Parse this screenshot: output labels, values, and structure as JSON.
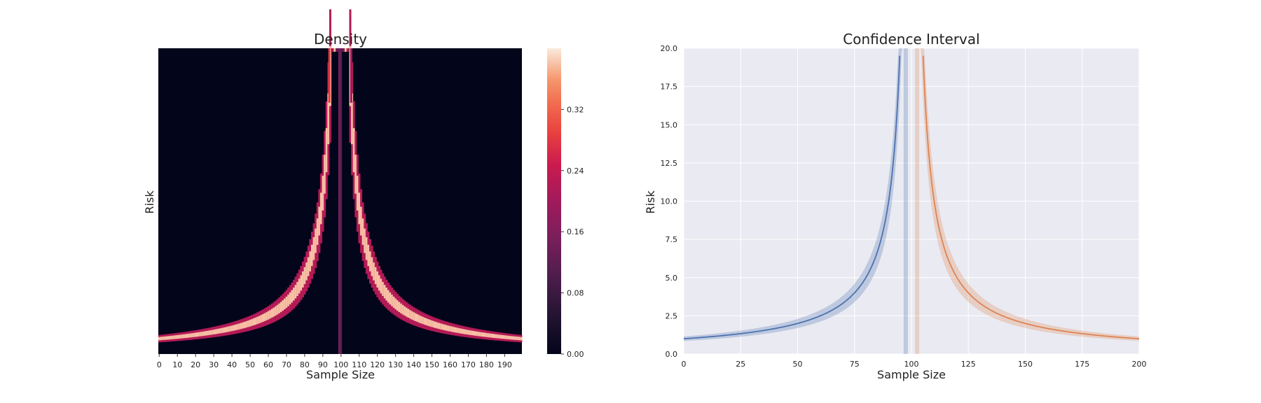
{
  "chart_data": [
    {
      "type": "heatmap",
      "title": "Density",
      "xlabel": "Sample Size",
      "ylabel": "Risk",
      "x_tick_labels": [
        "0",
        "10",
        "20",
        "30",
        "40",
        "50",
        "60",
        "70",
        "80",
        "90",
        "100",
        "110",
        "120",
        "130",
        "140",
        "150",
        "160",
        "170",
        "180",
        "190"
      ],
      "x_range": [
        0,
        200
      ],
      "y_range": [
        0,
        20
      ],
      "y_tick_labels": [],
      "colormap": "rocket",
      "colorbar": {
        "range": [
          0,
          0.4
        ],
        "tick_labels": [
          "0.00",
          "0.08",
          "0.16",
          "0.24",
          "0.32"
        ],
        "tick_values": [
          0,
          0.08,
          0.16,
          0.24,
          0.32
        ]
      },
      "density_model": {
        "curve": "risk = 1 / |1 - n/100|",
        "singularity_at": 100,
        "peak_density": 0.4
      },
      "grid": false
    },
    {
      "type": "line",
      "title": "Confidence Interval",
      "xlabel": "Sample Size",
      "ylabel": "Risk",
      "xlim": [
        0,
        200
      ],
      "ylim": [
        0,
        20
      ],
      "x_ticks": [
        "0",
        "25",
        "50",
        "75",
        "100",
        "125",
        "150",
        "175",
        "200"
      ],
      "y_ticks": [
        "0.0",
        "2.5",
        "5.0",
        "7.5",
        "10.0",
        "12.5",
        "15.0",
        "17.5",
        "20.0"
      ],
      "x_tick_values": [
        0,
        25,
        50,
        75,
        100,
        125,
        150,
        175,
        200
      ],
      "y_tick_values": [
        0,
        2.5,
        5,
        7.5,
        10,
        12.5,
        15,
        17.5,
        20
      ],
      "series": [
        {
          "x_from": 0,
          "x_to": 99,
          "points": [
            [
              0,
              1.0
            ],
            [
              25,
              1.33
            ],
            [
              50,
              2.0
            ],
            [
              60,
              2.5
            ],
            [
              70,
              3.33
            ],
            [
              75,
              4.0
            ],
            [
              80,
              5.0
            ],
            [
              85,
              6.67
            ],
            [
              90,
              10.0
            ],
            [
              93,
              14.29
            ],
            [
              95,
              20.0
            ]
          ],
          "band_halfwidth_frac": 0.15,
          "color": "#4C72B0"
        },
        {
          "x_from": 101,
          "x_to": 200,
          "points": [
            [
              105,
              20.0
            ],
            [
              107,
              14.29
            ],
            [
              110,
              10.0
            ],
            [
              115,
              6.67
            ],
            [
              120,
              5.0
            ],
            [
              125,
              4.0
            ],
            [
              150,
              2.0
            ],
            [
              175,
              1.33
            ],
            [
              200,
              1.0
            ]
          ],
          "band_halfwidth_frac": 0.15,
          "color": "#DD8452"
        }
      ],
      "background": "#EAEAF2",
      "grid": true
    }
  ]
}
